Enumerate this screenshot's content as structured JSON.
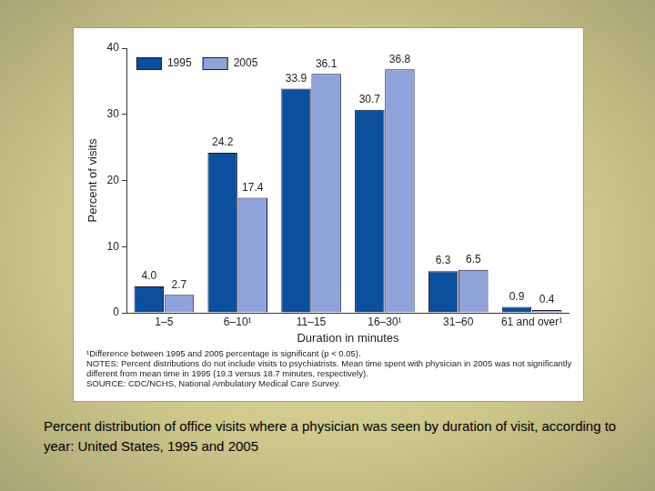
{
  "chart_data": {
    "type": "bar",
    "categories": [
      "1–5",
      "6–10¹",
      "11–15",
      "16–30¹",
      "31–60",
      "61 and over¹"
    ],
    "series": [
      {
        "name": "1995",
        "color": "#0b4f9e",
        "values": [
          4.0,
          24.2,
          33.9,
          30.7,
          6.3,
          0.9
        ],
        "value_labels": [
          "4.0",
          "24.2",
          "33.9",
          "30.7",
          "6.3",
          "0.9"
        ]
      },
      {
        "name": "2005",
        "color": "#8fa3da",
        "values": [
          2.7,
          17.4,
          36.1,
          36.8,
          6.5,
          0.4
        ],
        "value_labels": [
          "2.7",
          "17.4",
          "36.1",
          "36.8",
          "6.5",
          "0.4"
        ]
      }
    ],
    "x_label": "Duration in minutes",
    "y_label": "Percent of visits",
    "ylim": [
      0,
      40
    ],
    "yticks": [
      0,
      10,
      20,
      30,
      40
    ],
    "grid": false,
    "legend": "upper left",
    "data_labels": true,
    "notes": [
      "¹Difference between 1995 and 2005 percentage is significant (p < 0.05).",
      "NOTES: Percent distributions do not include visits to psychiatrists. Mean time spent with physician in 2005 was not significantly different from mean time in 1995 (19.3 versus 18.7 minutes, respectively).",
      "SOURCE: CDC/NCHS, National Ambulatory Medical Care Survey."
    ],
    "caption": "Percent distribution of office visits where a physician was seen by duration of visit, according to year: United States, 1995 and 2005"
  }
}
